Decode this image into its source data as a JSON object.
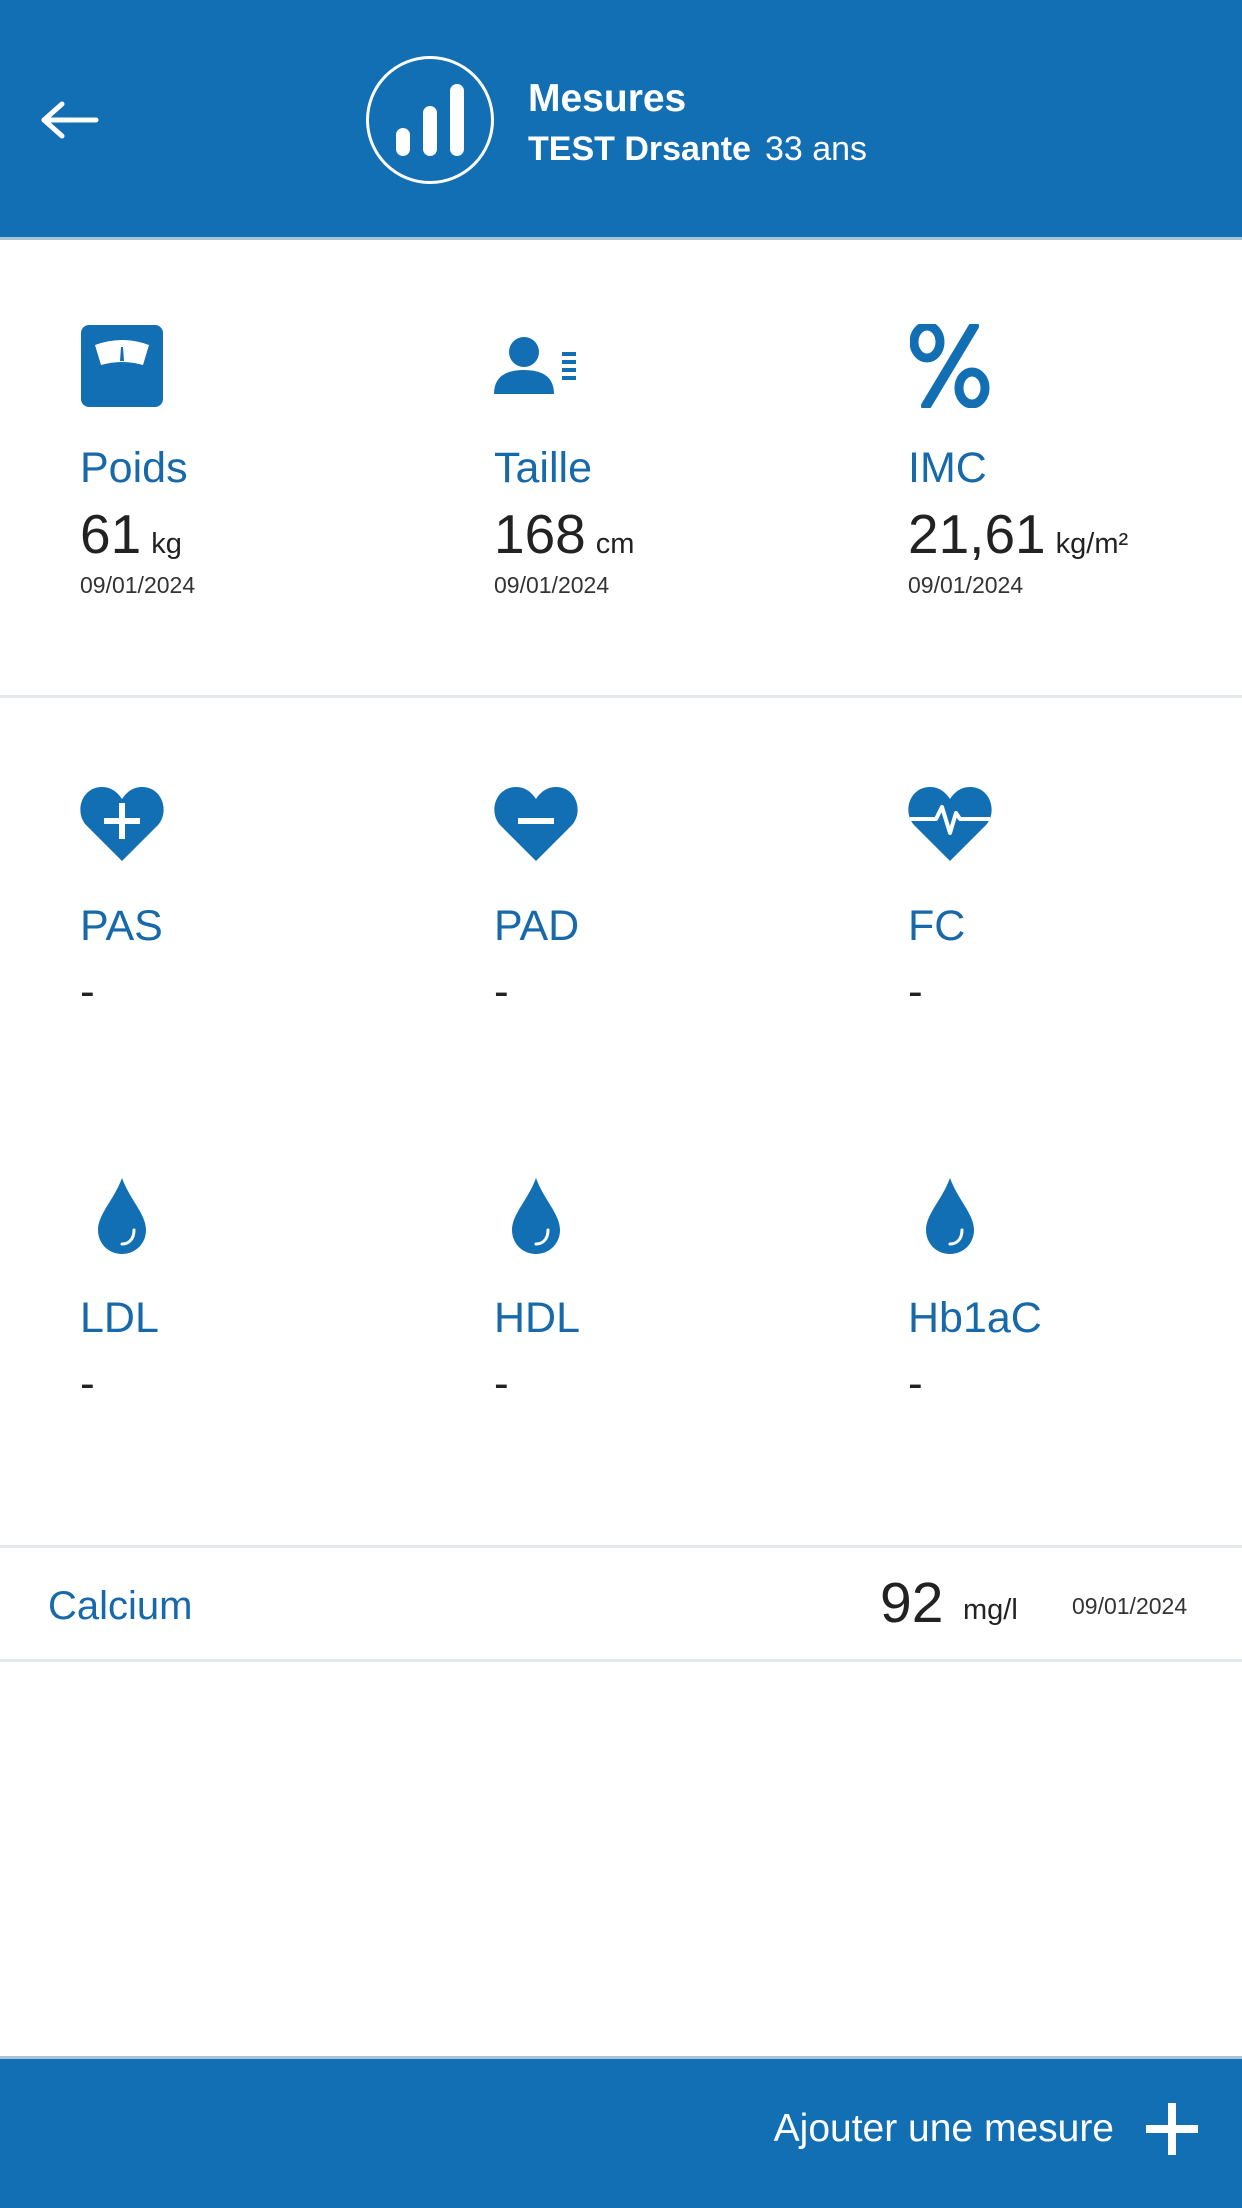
{
  "header": {
    "title": "Mesures",
    "patient_name": "TEST Drsante",
    "patient_age": "33 ans",
    "icons": {
      "back": "arrow-left-icon",
      "logo": "bar-chart-icon"
    }
  },
  "anthropometry": [
    {
      "id": "poids",
      "label": "Poids",
      "value": "61",
      "unit": "kg",
      "date": "09/01/2024",
      "icon": "scale-icon"
    },
    {
      "id": "taille",
      "label": "Taille",
      "value": "168",
      "unit": "cm",
      "date": "09/01/2024",
      "icon": "person-height-icon"
    },
    {
      "id": "imc",
      "label": "IMC",
      "value": "21,61",
      "unit": "kg/m²",
      "date": "09/01/2024",
      "icon": "percent-icon"
    }
  ],
  "vitals": [
    {
      "id": "pas",
      "label": "PAS",
      "value": "-",
      "icon": "heart-plus-icon"
    },
    {
      "id": "pad",
      "label": "PAD",
      "value": "-",
      "icon": "heart-minus-icon"
    },
    {
      "id": "fc",
      "label": "FC",
      "value": "-",
      "icon": "heart-pulse-icon"
    },
    {
      "id": "ldl",
      "label": "LDL",
      "value": "-",
      "icon": "drop-icon"
    },
    {
      "id": "hdl",
      "label": "HDL",
      "value": "-",
      "icon": "drop-icon"
    },
    {
      "id": "hb1ac",
      "label": "Hb1aC",
      "value": "-",
      "icon": "drop-icon"
    }
  ],
  "calcium": {
    "label": "Calcium",
    "value": "92",
    "unit": "mg/l",
    "date": "09/01/2024"
  },
  "actions": {
    "add_label": "Ajouter une mesure",
    "add_icon": "plus-icon"
  },
  "colors": {
    "primary": "#136fb3",
    "label": "#1769aa",
    "text": "#222222",
    "divider": "#e6e9ec"
  }
}
